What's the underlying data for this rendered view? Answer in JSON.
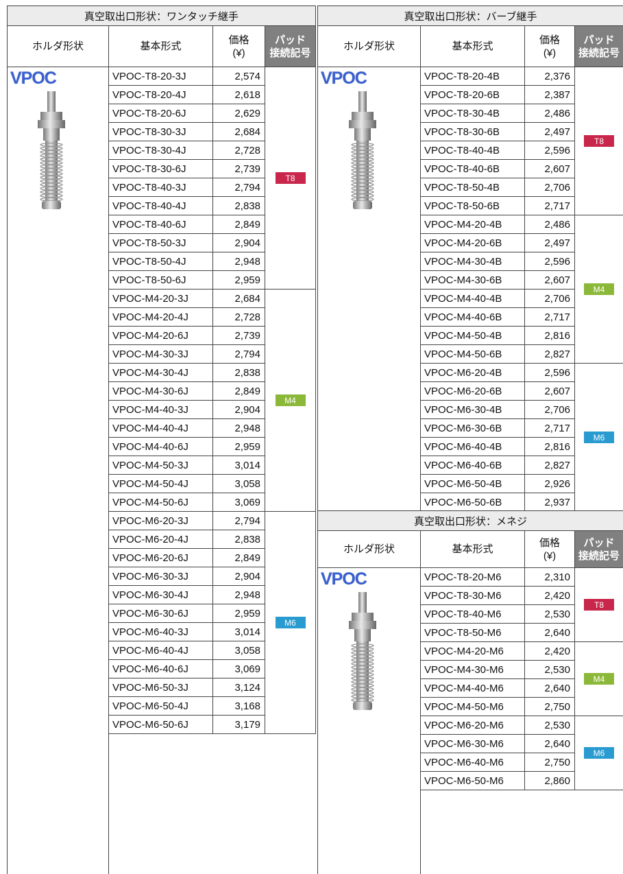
{
  "sections": [
    {
      "title": "真空取出口形状：ワンタッチ継手",
      "headers": {
        "holder": "ホルダ形状",
        "model": "基本形式",
        "price": [
          "価格",
          "(¥)"
        ],
        "pad": [
          "パッド",
          "接続記号"
        ]
      },
      "holder_label": "VPOC",
      "groups": [
        {
          "pad": "T8",
          "rows": [
            [
              "VPOC-T8-20-3J",
              "2,574"
            ],
            [
              "VPOC-T8-20-4J",
              "2,618"
            ],
            [
              "VPOC-T8-20-6J",
              "2,629"
            ],
            [
              "VPOC-T8-30-3J",
              "2,684"
            ],
            [
              "VPOC-T8-30-4J",
              "2,728"
            ],
            [
              "VPOC-T8-30-6J",
              "2,739"
            ],
            [
              "VPOC-T8-40-3J",
              "2,794"
            ],
            [
              "VPOC-T8-40-4J",
              "2,838"
            ],
            [
              "VPOC-T8-40-6J",
              "2,849"
            ],
            [
              "VPOC-T8-50-3J",
              "2,904"
            ],
            [
              "VPOC-T8-50-4J",
              "2,948"
            ],
            [
              "VPOC-T8-50-6J",
              "2,959"
            ]
          ]
        },
        {
          "pad": "M4",
          "rows": [
            [
              "VPOC-M4-20-3J",
              "2,684"
            ],
            [
              "VPOC-M4-20-4J",
              "2,728"
            ],
            [
              "VPOC-M4-20-6J",
              "2,739"
            ],
            [
              "VPOC-M4-30-3J",
              "2,794"
            ],
            [
              "VPOC-M4-30-4J",
              "2,838"
            ],
            [
              "VPOC-M4-30-6J",
              "2,849"
            ],
            [
              "VPOC-M4-40-3J",
              "2,904"
            ],
            [
              "VPOC-M4-40-4J",
              "2,948"
            ],
            [
              "VPOC-M4-40-6J",
              "2,959"
            ],
            [
              "VPOC-M4-50-3J",
              "3,014"
            ],
            [
              "VPOC-M4-50-4J",
              "3,058"
            ],
            [
              "VPOC-M4-50-6J",
              "3,069"
            ]
          ]
        },
        {
          "pad": "M6",
          "rows": [
            [
              "VPOC-M6-20-3J",
              "2,794"
            ],
            [
              "VPOC-M6-20-4J",
              "2,838"
            ],
            [
              "VPOC-M6-20-6J",
              "2,849"
            ],
            [
              "VPOC-M6-30-3J",
              "2,904"
            ],
            [
              "VPOC-M6-30-4J",
              "2,948"
            ],
            [
              "VPOC-M6-30-6J",
              "2,959"
            ],
            [
              "VPOC-M6-40-3J",
              "3,014"
            ],
            [
              "VPOC-M6-40-4J",
              "3,058"
            ],
            [
              "VPOC-M6-40-6J",
              "3,069"
            ],
            [
              "VPOC-M6-50-3J",
              "3,124"
            ],
            [
              "VPOC-M6-50-4J",
              "3,168"
            ],
            [
              "VPOC-M6-50-6J",
              "3,179"
            ]
          ]
        }
      ]
    },
    {
      "title": "真空取出口形状：バーブ継手",
      "headers": {
        "holder": "ホルダ形状",
        "model": "基本形式",
        "price": [
          "価格",
          "(¥)"
        ],
        "pad": [
          "パッド",
          "接続記号"
        ]
      },
      "holder_label": "VPOC",
      "groups": [
        {
          "pad": "T8",
          "rows": [
            [
              "VPOC-T8-20-4B",
              "2,376"
            ],
            [
              "VPOC-T8-20-6B",
              "2,387"
            ],
            [
              "VPOC-T8-30-4B",
              "2,486"
            ],
            [
              "VPOC-T8-30-6B",
              "2,497"
            ],
            [
              "VPOC-T8-40-4B",
              "2,596"
            ],
            [
              "VPOC-T8-40-6B",
              "2,607"
            ],
            [
              "VPOC-T8-50-4B",
              "2,706"
            ],
            [
              "VPOC-T8-50-6B",
              "2,717"
            ]
          ]
        },
        {
          "pad": "M4",
          "rows": [
            [
              "VPOC-M4-20-4B",
              "2,486"
            ],
            [
              "VPOC-M4-20-6B",
              "2,497"
            ],
            [
              "VPOC-M4-30-4B",
              "2,596"
            ],
            [
              "VPOC-M4-30-6B",
              "2,607"
            ],
            [
              "VPOC-M4-40-4B",
              "2,706"
            ],
            [
              "VPOC-M4-40-6B",
              "2,717"
            ],
            [
              "VPOC-M4-50-4B",
              "2,816"
            ],
            [
              "VPOC-M4-50-6B",
              "2,827"
            ]
          ]
        },
        {
          "pad": "M6",
          "rows": [
            [
              "VPOC-M6-20-4B",
              "2,596"
            ],
            [
              "VPOC-M6-20-6B",
              "2,607"
            ],
            [
              "VPOC-M6-30-4B",
              "2,706"
            ],
            [
              "VPOC-M6-30-6B",
              "2,717"
            ],
            [
              "VPOC-M6-40-4B",
              "2,816"
            ],
            [
              "VPOC-M6-40-6B",
              "2,827"
            ],
            [
              "VPOC-M6-50-4B",
              "2,926"
            ],
            [
              "VPOC-M6-50-6B",
              "2,937"
            ]
          ]
        }
      ]
    },
    {
      "title": "真空取出口形状：メネジ",
      "headers": {
        "holder": "ホルダ形状",
        "model": "基本形式",
        "price": [
          "価格",
          "(¥)"
        ],
        "pad": [
          "パッド",
          "接続記号"
        ]
      },
      "holder_label": "VPOC",
      "groups": [
        {
          "pad": "T8",
          "rows": [
            [
              "VPOC-T8-20-M6",
              "2,310"
            ],
            [
              "VPOC-T8-30-M6",
              "2,420"
            ],
            [
              "VPOC-T8-40-M6",
              "2,530"
            ],
            [
              "VPOC-T8-50-M6",
              "2,640"
            ]
          ]
        },
        {
          "pad": "M4",
          "rows": [
            [
              "VPOC-M4-20-M6",
              "2,420"
            ],
            [
              "VPOC-M4-30-M6",
              "2,530"
            ],
            [
              "VPOC-M4-40-M6",
              "2,640"
            ],
            [
              "VPOC-M4-50-M6",
              "2,750"
            ]
          ]
        },
        {
          "pad": "M6",
          "rows": [
            [
              "VPOC-M6-20-M6",
              "2,530"
            ],
            [
              "VPOC-M6-30-M6",
              "2,640"
            ],
            [
              "VPOC-M6-40-M6",
              "2,750"
            ],
            [
              "VPOC-M6-50-M6",
              "2,860"
            ]
          ]
        }
      ]
    }
  ]
}
